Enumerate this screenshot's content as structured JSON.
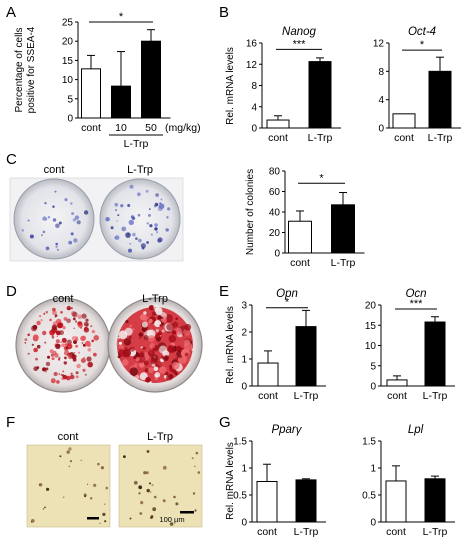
{
  "panels": {
    "A": "A",
    "B": "B",
    "C": "C",
    "D": "D",
    "E": "E",
    "F": "F",
    "G": "G"
  },
  "photos": {
    "C": {
      "labels": [
        "cont",
        "L-Trp"
      ]
    },
    "D": {
      "labels": [
        "cont",
        "L-Trp"
      ]
    },
    "F": {
      "labels": [
        "cont",
        "L-Trp"
      ],
      "scale_bar": "100 µm"
    }
  },
  "colors": {
    "cont_bar": "#ffffff",
    "ltrp_bar": "#000000",
    "colony_stain": "#4a55b0",
    "alizarin_red": "#d01e2a",
    "adipo_bg": "#ece2b6"
  },
  "chart_data": [
    {
      "id": "A",
      "type": "bar",
      "title": "",
      "ylabel_lines": [
        "Percentage of cells",
        "positive for SSEA-4"
      ],
      "ylim": [
        0,
        25
      ],
      "yticks": [
        0,
        5,
        10,
        15,
        20,
        25
      ],
      "categories": [
        "cont",
        "10",
        "50"
      ],
      "x_unit": "(mg/kg)",
      "group_label": "L-Trp",
      "values": [
        12.8,
        8.3,
        20.0
      ],
      "errors": [
        3.5,
        9.0,
        3.0
      ],
      "fills": [
        "#ffffff",
        "#000000",
        "#000000"
      ],
      "significance": [
        {
          "from": 0,
          "to": 2,
          "label": "*",
          "y": 25
        }
      ]
    },
    {
      "id": "B1",
      "type": "bar",
      "title": "Nanog",
      "ylabel": "Rel. mRNA levels",
      "ylim": [
        0,
        16
      ],
      "yticks": [
        0,
        4,
        8,
        12,
        16
      ],
      "categories": [
        "cont",
        "L-Trp"
      ],
      "values": [
        1.5,
        12.5
      ],
      "errors": [
        0.8,
        0.7
      ],
      "fills": [
        "#ffffff",
        "#000000"
      ],
      "significance": [
        {
          "from": 0,
          "to": 1,
          "label": "***",
          "y": 14.8
        }
      ]
    },
    {
      "id": "B2",
      "type": "bar",
      "title": "Oct-4",
      "ylabel": "",
      "ylim": [
        0,
        12
      ],
      "yticks": [
        0,
        4,
        8,
        12
      ],
      "categories": [
        "cont",
        "L-Trp"
      ],
      "values": [
        2.0,
        8.0
      ],
      "errors": [
        0,
        2.0
      ],
      "fills": [
        "#ffffff",
        "#000000"
      ],
      "significance": [
        {
          "from": 0,
          "to": 1,
          "label": "*",
          "y": 11.0
        }
      ]
    },
    {
      "id": "C",
      "type": "bar",
      "title": "",
      "ylabel": "Number of colonies",
      "ylim": [
        0,
        80
      ],
      "yticks": [
        0,
        20,
        40,
        60,
        80
      ],
      "categories": [
        "cont",
        "L-Trp"
      ],
      "values": [
        31,
        47
      ],
      "errors": [
        10,
        12
      ],
      "fills": [
        "#ffffff",
        "#000000"
      ],
      "significance": [
        {
          "from": 0,
          "to": 1,
          "label": "*",
          "y": 68
        }
      ]
    },
    {
      "id": "E1",
      "type": "bar",
      "title": "Opn",
      "ylabel": "Rel. mRNA levels",
      "ylim": [
        0,
        3
      ],
      "yticks": [
        0,
        1,
        2,
        3
      ],
      "categories": [
        "cont",
        "L-Trp"
      ],
      "values": [
        0.85,
        2.2
      ],
      "errors": [
        0.45,
        0.6
      ],
      "fills": [
        "#ffffff",
        "#000000"
      ],
      "significance": [
        {
          "from": 0,
          "to": 1,
          "label": "*",
          "y": 2.9
        }
      ]
    },
    {
      "id": "E2",
      "type": "bar",
      "title": "Ocn",
      "ylabel": "",
      "ylim": [
        0,
        20
      ],
      "yticks": [
        0,
        5,
        10,
        15,
        20
      ],
      "categories": [
        "cont",
        "L-Trp"
      ],
      "values": [
        1.5,
        15.8
      ],
      "errors": [
        1.0,
        1.3
      ],
      "fills": [
        "#ffffff",
        "#000000"
      ],
      "significance": [
        {
          "from": 0,
          "to": 1,
          "label": "***",
          "y": 19.0
        }
      ]
    },
    {
      "id": "G1",
      "type": "bar",
      "title": "Pparγ",
      "ylabel": "Rel. mRNA levels",
      "ylim": [
        0,
        1.5
      ],
      "yticks": [
        0,
        0.5,
        1,
        1.5
      ],
      "categories": [
        "cont",
        "L-Trp"
      ],
      "values": [
        0.75,
        0.78
      ],
      "errors": [
        0.32,
        0.02
      ],
      "fills": [
        "#ffffff",
        "#000000"
      ],
      "significance": []
    },
    {
      "id": "G2",
      "type": "bar",
      "title": "Lpl",
      "ylabel": "",
      "ylim": [
        0,
        1.5
      ],
      "yticks": [
        0,
        0.5,
        1,
        1.5
      ],
      "categories": [
        "cont",
        "L-Trp"
      ],
      "values": [
        0.76,
        0.8
      ],
      "errors": [
        0.28,
        0.05
      ],
      "fills": [
        "#ffffff",
        "#000000"
      ],
      "significance": []
    }
  ]
}
